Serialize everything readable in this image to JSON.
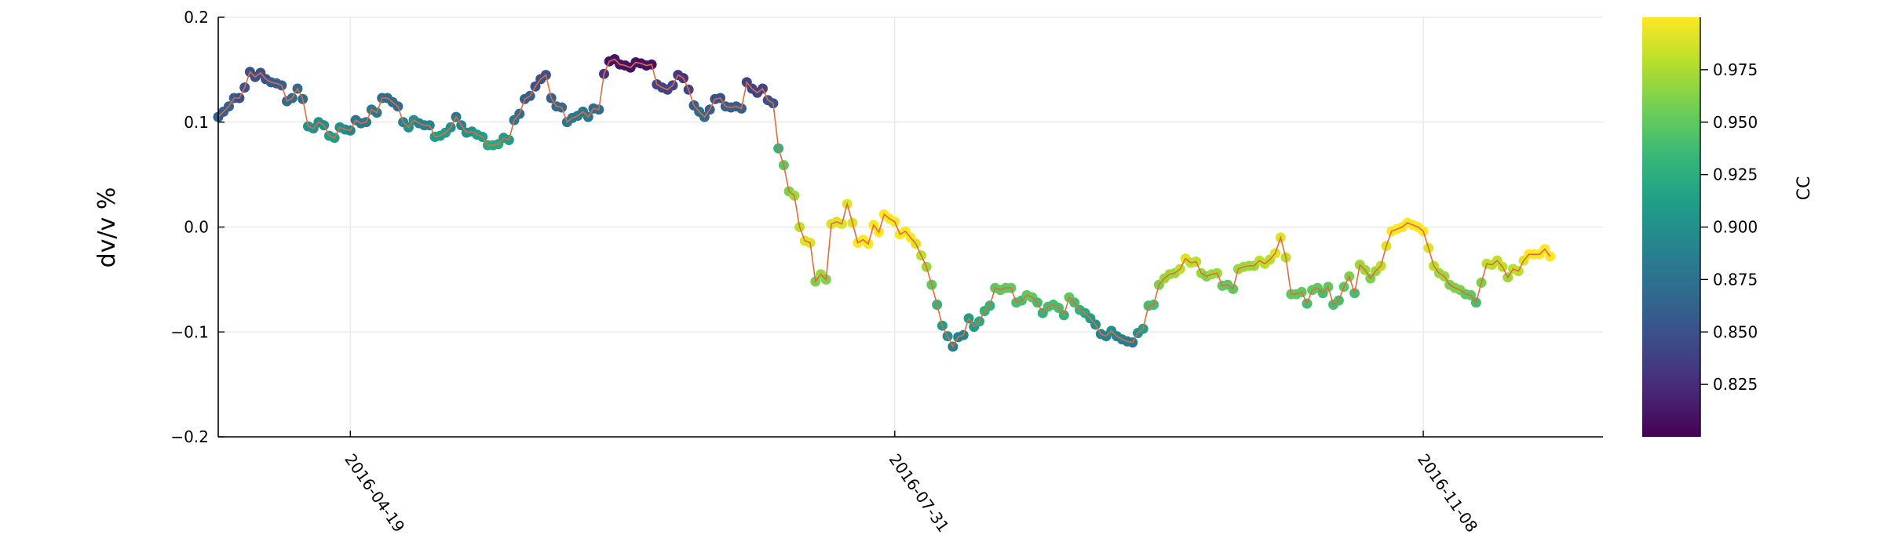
{
  "chart_data": {
    "type": "scatter",
    "title": "",
    "xlabel": "",
    "ylabel": "dv/v %",
    "ylim": [
      -0.2,
      0.2
    ],
    "yticks": [
      -0.2,
      -0.1,
      0.0,
      0.1,
      0.2
    ],
    "ytick_labels": [
      "−0.2",
      "−0.1",
      "0.0",
      "0.1",
      "0.2"
    ],
    "xlim": [
      "2016-03-25",
      "2016-12-12"
    ],
    "xticks": [
      "2016-04-19",
      "2016-07-31",
      "2016-11-08"
    ],
    "grid": true,
    "line_color": "#e26a3f",
    "colormap": "viridis",
    "colorbar": {
      "label": "CC",
      "range": [
        0.8,
        1.0
      ],
      "ticks": [
        0.825,
        0.85,
        0.875,
        0.9,
        0.925,
        0.95,
        0.975
      ],
      "tick_labels": [
        "0.825",
        "0.850",
        "0.875",
        "0.900",
        "0.925",
        "0.950",
        "0.975"
      ]
    },
    "series": [
      {
        "start_date": "2016-03-25",
        "step_days": 1,
        "dvv": [
          0.105,
          0.11,
          0.115,
          0.123,
          0.123,
          0.133,
          0.148,
          0.143,
          0.147,
          0.141,
          0.138,
          0.137,
          0.135,
          0.12,
          0.123,
          0.132,
          0.122,
          0.096,
          0.094,
          0.1,
          0.097,
          0.087,
          0.085,
          0.095,
          0.093,
          0.092,
          0.102,
          0.099,
          0.1,
          0.112,
          0.109,
          0.123,
          0.123,
          0.119,
          0.115,
          0.1,
          0.095,
          0.102,
          0.099,
          0.097,
          0.097,
          0.086,
          0.087,
          0.09,
          0.095,
          0.105,
          0.097,
          0.09,
          0.091,
          0.088,
          0.086,
          0.078,
          0.078,
          0.079,
          0.085,
          0.083,
          0.102,
          0.108,
          0.122,
          0.125,
          0.134,
          0.141,
          0.145,
          0.123,
          0.115,
          0.114,
          0.1,
          0.104,
          0.106,
          0.11,
          0.105,
          0.113,
          0.112,
          0.146,
          0.158,
          0.16,
          0.155,
          0.154,
          0.152,
          0.157,
          0.156,
          0.154,
          0.155,
          0.136,
          0.133,
          0.131,
          0.135,
          0.145,
          0.142,
          0.131,
          0.116,
          0.11,
          0.105,
          0.112,
          0.122,
          0.123,
          0.115,
          0.114,
          0.115,
          0.113,
          0.138,
          0.132,
          0.128,
          0.132,
          0.121,
          0.118,
          0.075,
          0.059,
          0.034,
          0.03,
          0.0,
          -0.013,
          -0.015,
          -0.052,
          -0.045,
          -0.05,
          0.003,
          0.005,
          0.003,
          0.022,
          0.004,
          -0.015,
          -0.012,
          -0.016,
          0.002,
          -0.005,
          0.012,
          0.008,
          0.005,
          -0.007,
          -0.004,
          -0.01,
          -0.016,
          -0.027,
          -0.038,
          -0.055,
          -0.074,
          -0.094,
          -0.104,
          -0.114,
          -0.105,
          -0.103,
          -0.087,
          -0.095,
          -0.09,
          -0.08,
          -0.075,
          -0.058,
          -0.06,
          -0.058,
          -0.058,
          -0.072,
          -0.07,
          -0.065,
          -0.067,
          -0.072,
          -0.082,
          -0.076,
          -0.074,
          -0.077,
          -0.084,
          -0.067,
          -0.072,
          -0.079,
          -0.082,
          -0.087,
          -0.093,
          -0.102,
          -0.104,
          -0.099,
          -0.104,
          -0.107,
          -0.109,
          -0.11,
          -0.101,
          -0.097,
          -0.075,
          -0.074,
          -0.055,
          -0.049,
          -0.045,
          -0.044,
          -0.04,
          -0.03,
          -0.034,
          -0.033,
          -0.044,
          -0.047,
          -0.045,
          -0.044,
          -0.056,
          -0.055,
          -0.059,
          -0.04,
          -0.038,
          -0.037,
          -0.037,
          -0.032,
          -0.035,
          -0.031,
          -0.025,
          -0.01,
          -0.029,
          -0.064,
          -0.064,
          -0.062,
          -0.073,
          -0.06,
          -0.058,
          -0.063,
          -0.057,
          -0.074,
          -0.07,
          -0.057,
          -0.047,
          -0.063,
          -0.036,
          -0.041,
          -0.049,
          -0.042,
          -0.037,
          -0.018,
          -0.004,
          -0.002,
          0.0,
          0.004,
          0.002,
          0.0,
          -0.004,
          -0.02,
          -0.037,
          -0.044,
          -0.047,
          -0.055,
          -0.058,
          -0.06,
          -0.064,
          -0.065,
          -0.072,
          -0.053,
          -0.035,
          -0.036,
          -0.032,
          -0.038,
          -0.048,
          -0.04,
          -0.042,
          -0.032,
          -0.026,
          -0.026,
          -0.026,
          -0.021,
          -0.028
        ],
        "cc": [
          0.86,
          0.86,
          0.86,
          0.86,
          0.85,
          0.85,
          0.85,
          0.85,
          0.85,
          0.85,
          0.86,
          0.86,
          0.86,
          0.87,
          0.87,
          0.87,
          0.87,
          0.9,
          0.9,
          0.9,
          0.9,
          0.91,
          0.91,
          0.9,
          0.9,
          0.89,
          0.88,
          0.88,
          0.88,
          0.88,
          0.88,
          0.87,
          0.87,
          0.87,
          0.87,
          0.89,
          0.9,
          0.9,
          0.89,
          0.89,
          0.89,
          0.91,
          0.91,
          0.91,
          0.9,
          0.88,
          0.89,
          0.9,
          0.9,
          0.91,
          0.91,
          0.92,
          0.92,
          0.92,
          0.91,
          0.91,
          0.88,
          0.87,
          0.86,
          0.86,
          0.85,
          0.85,
          0.85,
          0.86,
          0.87,
          0.87,
          0.88,
          0.88,
          0.88,
          0.88,
          0.88,
          0.87,
          0.87,
          0.83,
          0.81,
          0.81,
          0.81,
          0.81,
          0.81,
          0.81,
          0.81,
          0.81,
          0.81,
          0.84,
          0.84,
          0.84,
          0.84,
          0.83,
          0.83,
          0.84,
          0.86,
          0.87,
          0.87,
          0.86,
          0.85,
          0.85,
          0.86,
          0.86,
          0.86,
          0.86,
          0.84,
          0.84,
          0.84,
          0.84,
          0.85,
          0.85,
          0.93,
          0.95,
          0.96,
          0.97,
          0.98,
          0.99,
          0.99,
          0.96,
          0.97,
          0.96,
          0.99,
          0.99,
          0.99,
          0.99,
          0.99,
          1.0,
          1.0,
          1.0,
          1.0,
          1.0,
          1.0,
          1.0,
          1.0,
          1.0,
          1.0,
          1.0,
          0.99,
          0.98,
          0.97,
          0.95,
          0.93,
          0.91,
          0.9,
          0.89,
          0.89,
          0.89,
          0.91,
          0.91,
          0.92,
          0.93,
          0.93,
          0.95,
          0.95,
          0.95,
          0.95,
          0.94,
          0.94,
          0.95,
          0.95,
          0.94,
          0.93,
          0.94,
          0.94,
          0.94,
          0.93,
          0.95,
          0.94,
          0.93,
          0.92,
          0.91,
          0.9,
          0.89,
          0.89,
          0.9,
          0.89,
          0.89,
          0.88,
          0.88,
          0.9,
          0.91,
          0.94,
          0.94,
          0.96,
          0.97,
          0.97,
          0.97,
          0.98,
          0.99,
          0.98,
          0.98,
          0.97,
          0.96,
          0.97,
          0.97,
          0.95,
          0.95,
          0.95,
          0.97,
          0.97,
          0.97,
          0.97,
          0.98,
          0.98,
          0.98,
          0.99,
          0.99,
          0.98,
          0.95,
          0.95,
          0.95,
          0.94,
          0.95,
          0.95,
          0.94,
          0.95,
          0.94,
          0.94,
          0.95,
          0.96,
          0.94,
          0.97,
          0.97,
          0.96,
          0.97,
          0.98,
          0.99,
          1.0,
          1.0,
          1.0,
          1.0,
          1.0,
          1.0,
          1.0,
          0.99,
          0.98,
          0.97,
          0.97,
          0.96,
          0.96,
          0.96,
          0.95,
          0.95,
          0.94,
          0.96,
          0.98,
          0.98,
          0.98,
          0.98,
          0.97,
          0.98,
          0.98,
          0.99,
          1.0,
          1.0,
          1.0,
          1.0,
          1.0
        ]
      }
    ]
  }
}
